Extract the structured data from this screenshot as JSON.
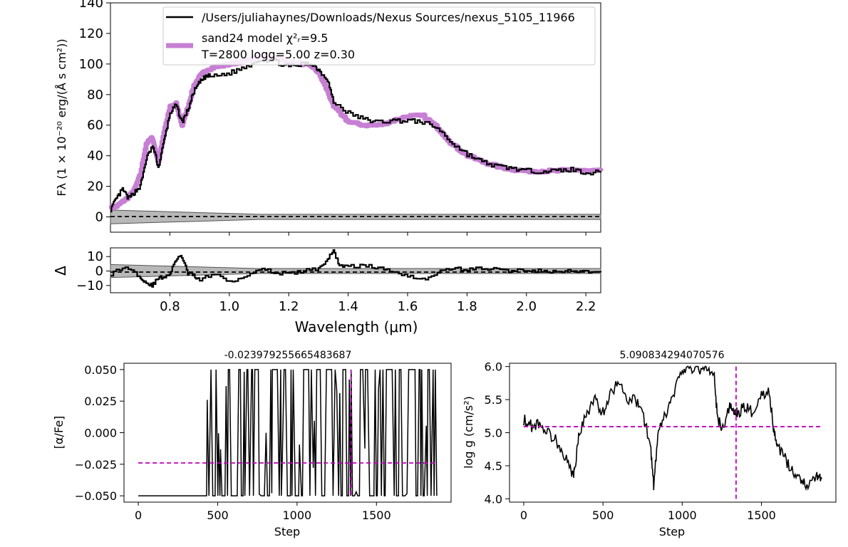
{
  "chart_data": [
    {
      "type": "line",
      "ylabel": "Fλ (1 × 10⁻²⁰ erg/(Å s cm²))",
      "xlabel": "",
      "xlim": [
        0.6,
        2.25
      ],
      "ylim": [
        -10,
        140
      ],
      "yticks": [
        0,
        20,
        40,
        60,
        80,
        100,
        120,
        140
      ],
      "legend_position": "top-right",
      "legend": {
        "data_label": "/Users/juliahaynes/Downloads/Nexus Sources/nexus_5105_11966",
        "model_label": "sand24 model χ²ᵣ=9.5",
        "model_params": "T=2800 logg=5.00 z=0.30"
      },
      "series": [
        {
          "name": "/Users/juliahaynes/Downloads/Nexus Sources/nexus_5105_11966",
          "color": "#000000",
          "x": [
            0.6,
            0.62,
            0.64,
            0.66,
            0.68,
            0.7,
            0.72,
            0.74,
            0.75,
            0.76,
            0.78,
            0.8,
            0.82,
            0.84,
            0.86,
            0.88,
            0.9,
            0.92,
            0.95,
            1.0,
            1.05,
            1.1,
            1.15,
            1.2,
            1.25,
            1.28,
            1.3,
            1.33,
            1.35,
            1.4,
            1.45,
            1.5,
            1.55,
            1.6,
            1.65,
            1.7,
            1.75,
            1.8,
            1.85,
            1.9,
            1.95,
            2.0,
            2.05,
            2.1,
            2.15,
            2.2,
            2.25
          ],
          "y": [
            5,
            12,
            18,
            12,
            16,
            20,
            38,
            46,
            42,
            32,
            50,
            68,
            73,
            62,
            70,
            82,
            88,
            92,
            92,
            94,
            98,
            103,
            102,
            98,
            100,
            100,
            96,
            90,
            75,
            68,
            64,
            62,
            63,
            63,
            62,
            58,
            48,
            41,
            36,
            33,
            32,
            30,
            30,
            30,
            31,
            29,
            29
          ]
        },
        {
          "name": "sand24 model",
          "color": "#c77fd4",
          "x": [
            0.6,
            0.62,
            0.64,
            0.66,
            0.68,
            0.7,
            0.72,
            0.74,
            0.75,
            0.76,
            0.78,
            0.8,
            0.82,
            0.84,
            0.86,
            0.88,
            0.9,
            0.92,
            0.95,
            1.0,
            1.05,
            1.1,
            1.15,
            1.2,
            1.25,
            1.28,
            1.3,
            1.33,
            1.35,
            1.4,
            1.45,
            1.5,
            1.55,
            1.6,
            1.65,
            1.7,
            1.75,
            1.8,
            1.85,
            1.9,
            1.95,
            2.0,
            2.05,
            2.1,
            2.15,
            2.2,
            2.25
          ],
          "y": [
            6,
            7,
            10,
            13,
            18,
            28,
            48,
            52,
            44,
            36,
            56,
            72,
            74,
            60,
            72,
            86,
            92,
            96,
            98,
            100,
            102,
            105,
            104,
            101,
            100,
            98,
            94,
            82,
            72,
            62,
            60,
            60,
            63,
            66,
            66,
            58,
            47,
            40,
            36,
            33,
            31,
            30,
            30,
            30,
            31,
            30,
            30
          ]
        }
      ],
      "zero_line": 0
    },
    {
      "type": "line",
      "ylabel": "Δ",
      "xlabel": "Wavelength (μm)",
      "xlim": [
        0.6,
        2.25
      ],
      "ylim": [
        -15,
        16
      ],
      "xticks": [
        0.8,
        1.0,
        1.2,
        1.4,
        1.6,
        1.8,
        2.0,
        2.2
      ],
      "xtick_labels": [
        "0.8",
        "1.0",
        "1.2",
        "1.4",
        "1.6",
        "1.8",
        "2.0",
        "2.2"
      ],
      "yticks": [
        10,
        0,
        -10
      ],
      "ytick_labels": [
        "10",
        "0",
        "−10"
      ],
      "series": [
        {
          "name": "residual",
          "x": [
            0.6,
            0.65,
            0.7,
            0.72,
            0.74,
            0.76,
            0.78,
            0.8,
            0.82,
            0.84,
            0.86,
            0.88,
            0.9,
            0.95,
            1.0,
            1.05,
            1.1,
            1.15,
            1.2,
            1.25,
            1.3,
            1.33,
            1.35,
            1.37,
            1.4,
            1.45,
            1.5,
            1.55,
            1.6,
            1.65,
            1.7,
            1.75,
            1.8,
            1.85,
            1.9,
            1.95,
            2.0,
            2.05,
            2.1,
            2.15,
            2.2,
            2.25
          ],
          "y": [
            -2,
            3,
            -4,
            -8,
            -10,
            -5,
            -4,
            -2,
            8,
            10,
            -2,
            -3,
            -6,
            -2,
            -7,
            -4,
            2,
            -1,
            -2,
            0,
            2,
            8,
            14,
            4,
            3,
            4,
            2,
            0,
            -3,
            -6,
            -1,
            2,
            1,
            2,
            1,
            0,
            1,
            0,
            -1,
            0,
            -1,
            -1
          ]
        }
      ],
      "zero_line": 0
    },
    {
      "type": "line",
      "title": "-0.023979255665483687",
      "xlabel": "Step",
      "ylabel": "[α/Fe]",
      "xlim": [
        -90,
        1970
      ],
      "ylim": [
        -0.055,
        0.055
      ],
      "xticks": [
        0,
        500,
        1000,
        1500
      ],
      "yticks": [
        0.05,
        0.025,
        0.0,
        -0.025,
        -0.05
      ],
      "ytick_labels": [
        "0.050",
        "0.025",
        "0.000",
        "−0.025",
        "−0.050"
      ],
      "hline": -0.023979255665483687,
      "vline": 1340,
      "marker_color": "#bf00bf",
      "trace": {
        "burn_in_end": 430,
        "burn_in_value": -0.05,
        "n_steps": 1880,
        "min": -0.05,
        "max": 0.05
      }
    },
    {
      "type": "line",
      "title": "5.090834294070576",
      "xlabel": "Step",
      "ylabel": "log g (cm/s²)",
      "xlim": [
        -90,
        1970
      ],
      "ylim": [
        3.95,
        6.05
      ],
      "xticks": [
        0,
        500,
        1000,
        1500
      ],
      "yticks": [
        6.0,
        5.5,
        5.0,
        4.5,
        4.0
      ],
      "ytick_labels": [
        "6.0",
        "5.5",
        "5.0",
        "4.5",
        "4.0"
      ],
      "hline": 5.090834294070576,
      "vline": 1340,
      "marker_color": "#bf00bf",
      "trace": {
        "x": [
          0,
          50,
          100,
          150,
          200,
          250,
          300,
          320,
          350,
          400,
          450,
          500,
          550,
          600,
          650,
          700,
          750,
          800,
          820,
          850,
          900,
          950,
          1000,
          1050,
          1100,
          1150,
          1200,
          1220,
          1250,
          1300,
          1330,
          1350,
          1400,
          1450,
          1500,
          1550,
          1580,
          1600,
          1650,
          1700,
          1750,
          1800,
          1850,
          1880
        ],
        "y": [
          5.2,
          5.1,
          5.15,
          5.0,
          4.9,
          4.7,
          4.4,
          4.4,
          5.0,
          5.3,
          5.5,
          5.3,
          5.6,
          5.8,
          5.5,
          5.5,
          5.3,
          4.8,
          4.2,
          5.0,
          5.3,
          5.6,
          5.95,
          6.0,
          5.95,
          6.0,
          5.9,
          5.3,
          5.0,
          5.4,
          5.3,
          5.3,
          5.4,
          5.3,
          5.6,
          5.6,
          5.0,
          4.8,
          4.6,
          4.4,
          4.3,
          4.2,
          4.35,
          4.3
        ]
      }
    }
  ]
}
